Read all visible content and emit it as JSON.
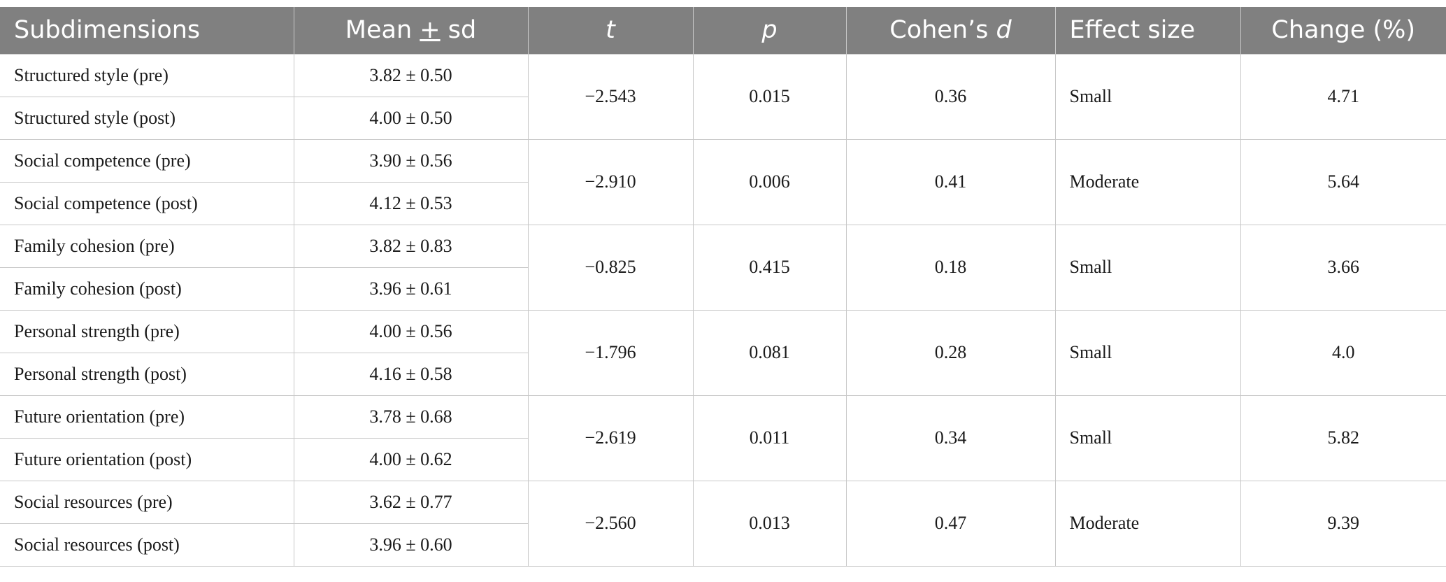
{
  "table": {
    "headers": [
      {
        "pre": "Subdimensions",
        "it": "",
        "post": ""
      },
      {
        "pre": "Mean ",
        "it": "",
        "post": "",
        "u": "+",
        "tail": " sd"
      },
      {
        "pre": "",
        "it": "t",
        "post": ""
      },
      {
        "pre": "",
        "it": "p",
        "post": ""
      },
      {
        "pre": "Cohen’s ",
        "it": "d",
        "post": ""
      },
      {
        "pre": "Effect size",
        "it": "",
        "post": ""
      },
      {
        "pre": "Change (%)",
        "it": "",
        "post": ""
      }
    ],
    "groups": [
      {
        "pre_label": "Structured style (pre)",
        "pre_mean": "3.82 ± 0.50",
        "post_label": "Structured style (post)",
        "post_mean": "4.00 ± 0.50",
        "t": "−2.543",
        "p": "0.015",
        "d": "0.36",
        "effect": "Small",
        "change": "4.71"
      },
      {
        "pre_label": "Social competence (pre)",
        "pre_mean": "3.90 ± 0.56",
        "post_label": "Social competence (post)",
        "post_mean": "4.12 ± 0.53",
        "t": "−2.910",
        "p": "0.006",
        "d": "0.41",
        "effect": "Moderate",
        "change": "5.64"
      },
      {
        "pre_label": "Family cohesion (pre)",
        "pre_mean": "3.82 ± 0.83",
        "post_label": "Family cohesion (post)",
        "post_mean": "3.96 ± 0.61",
        "t": "−0.825",
        "p": "0.415",
        "d": "0.18",
        "effect": "Small",
        "change": "3.66"
      },
      {
        "pre_label": "Personal strength (pre)",
        "pre_mean": "4.00 ± 0.56",
        "post_label": "Personal strength (post)",
        "post_mean": "4.16 ± 0.58",
        "t": "−1.796",
        "p": "0.081",
        "d": "0.28",
        "effect": "Small",
        "change": "4.0"
      },
      {
        "pre_label": "Future orientation (pre)",
        "pre_mean": "3.78 ± 0.68",
        "post_label": "Future orientation (post)",
        "post_mean": "4.00 ± 0.62",
        "t": "−2.619",
        "p": "0.011",
        "d": "0.34",
        "effect": "Small",
        "change": "5.82"
      },
      {
        "pre_label": "Social resources (pre)",
        "pre_mean": "3.62 ± 0.77",
        "post_label": "Social resources (post)",
        "post_mean": "3.96 ± 0.60",
        "t": "−2.560",
        "p": "0.013",
        "d": "0.47",
        "effect": "Moderate",
        "change": "9.39"
      }
    ]
  }
}
